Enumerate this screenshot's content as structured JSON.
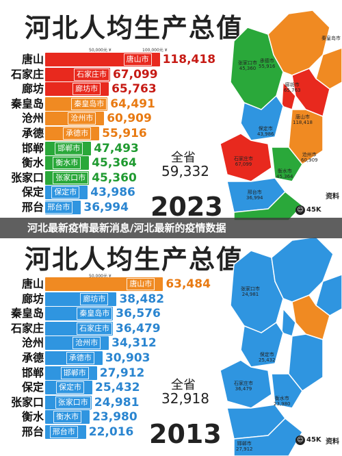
{
  "overlay_title": "河北最新疫情最新消息/河北最新的疫情数据",
  "chart_data": [
    {
      "type": "bar",
      "title": "河北人均生产总值",
      "year": "2023",
      "tick_labels": [
        "50,000元 ¥",
        "100,000元 ¥"
      ],
      "total_label": "全省",
      "total_value": "59,332",
      "categories": [
        "唐山",
        "石家庄",
        "廊坊",
        "秦皇岛",
        "沧州",
        "承德",
        "邯郸",
        "衡水",
        "张家口",
        "保定",
        "邢台"
      ],
      "bar_labels": [
        "唐山市",
        "石家庄市",
        "廊坊市",
        "秦皇岛市",
        "沧州市",
        "承德市",
        "邯郸市",
        "衡水市",
        "张家口市",
        "保定市",
        "邢台市"
      ],
      "value_labels": [
        "118,418",
        "67,099",
        "65,763",
        "64,491",
        "60,909",
        "55,916",
        "47,493",
        "45,364",
        "45,360",
        "43,986",
        "36,994"
      ],
      "values": [
        118418,
        67099,
        65763,
        64491,
        60909,
        55916,
        47493,
        45364,
        45360,
        43986,
        36994
      ],
      "colors": [
        "#e8291e",
        "#e8291e",
        "#e8291e",
        "#f08a22",
        "#f08a22",
        "#f08a22",
        "#2aa83a",
        "#2aa83a",
        "#2aa83a",
        "#2f95e0",
        "#2f95e0"
      ],
      "value_colors": [
        "#c61a14",
        "#c61a14",
        "#c61a14",
        "#e87a12",
        "#e87a12",
        "#e87a12",
        "#1f9a30",
        "#1f9a30",
        "#1f9a30",
        "#2a85d0",
        "#2a85d0"
      ],
      "xlim": [
        0,
        130000
      ],
      "map_labels": [
        {
          "name": "张家口市",
          "value": "45,360"
        },
        {
          "name": "承德市",
          "value": "55,916"
        },
        {
          "name": "秦皇岛市",
          "value": ""
        },
        {
          "name": "唐山市",
          "value": "118,418"
        },
        {
          "name": "廊坊市",
          "value": "65,763"
        },
        {
          "name": "保定市",
          "value": "43,986"
        },
        {
          "name": "沧州市",
          "value": "60,909"
        },
        {
          "name": "石家庄市",
          "value": "67,099"
        },
        {
          "name": "衡水市",
          "value": "45,364"
        },
        {
          "name": "邢台市",
          "value": "36,994"
        }
      ],
      "badge_text": "45K",
      "badge_text2": "资料"
    },
    {
      "type": "bar",
      "title": "河北人均生产总值",
      "year": "2013",
      "tick_labels": [
        "50,000元 ¥"
      ],
      "total_label": "全省",
      "total_value": "32,918",
      "categories": [
        "唐山",
        "廊坊",
        "秦皇岛",
        "石家庄",
        "沧州",
        "承德",
        "邯郸",
        "保定",
        "张家口",
        "衡水",
        "邢台"
      ],
      "bar_labels": [
        "唐山市",
        "廊坊市",
        "秦皇岛市",
        "石家庄市",
        "沧州市",
        "承德市",
        "邯郸市",
        "保定市",
        "张家口市",
        "衡水市",
        "邢台市"
      ],
      "value_labels": [
        "63,484",
        "38,482",
        "36,576",
        "36,479",
        "34,312",
        "30,903",
        "27,912",
        "25,432",
        "24,981",
        "23,980",
        "22,016"
      ],
      "values": [
        63484,
        38482,
        36576,
        36479,
        34312,
        30903,
        27912,
        25432,
        24981,
        23980,
        22016
      ],
      "colors": [
        "#f08a22",
        "#2f95e0",
        "#2f95e0",
        "#2f95e0",
        "#2f95e0",
        "#2f95e0",
        "#2f95e0",
        "#2f95e0",
        "#2f95e0",
        "#2f95e0",
        "#2f95e0"
      ],
      "value_colors": [
        "#e87a12",
        "#2a85d0",
        "#2a85d0",
        "#2a85d0",
        "#2a85d0",
        "#2a85d0",
        "#2a85d0",
        "#2a85d0",
        "#2a85d0",
        "#2a85d0",
        "#2a85d0"
      ],
      "xlim": [
        0,
        70000
      ],
      "map_labels": [
        {
          "name": "张家口市",
          "value": "24,981"
        },
        {
          "name": "承德市",
          "value": ""
        },
        {
          "name": "唐山市",
          "value": ""
        },
        {
          "name": "廊坊市",
          "value": ""
        },
        {
          "name": "保定市",
          "value": "25,432"
        },
        {
          "name": "沧州市",
          "value": ""
        },
        {
          "name": "石家庄市",
          "value": "36,479"
        },
        {
          "name": "衡水市",
          "value": "23,980"
        },
        {
          "name": "邢台市",
          "value": ""
        },
        {
          "name": "邯郸市",
          "value": "27,912"
        }
      ],
      "badge_text": "45K",
      "badge_text2": "资料"
    }
  ]
}
